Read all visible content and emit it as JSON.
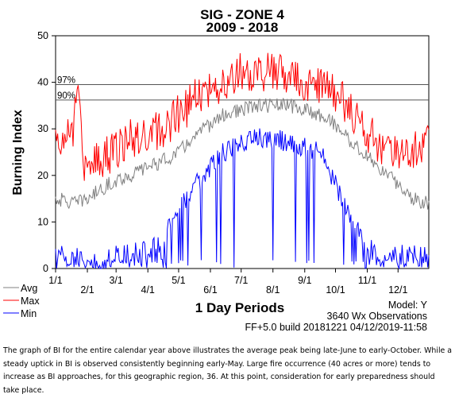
{
  "chart_data": {
    "type": "line",
    "title": "SIG - ZONE 4",
    "subtitle": "2009 - 2018",
    "ylabel": "Burning Index",
    "xlabel": "1 Day Periods",
    "ylim": [
      0,
      50
    ],
    "yticks": [
      "0",
      "10",
      "20",
      "30",
      "40",
      "50"
    ],
    "x_tick_labels": [
      "1/1",
      "2/1",
      "3/1",
      "4/1",
      "5/1",
      "6/1",
      "7/1",
      "8/1",
      "9/1",
      "10/1",
      "11/1",
      "12/1"
    ],
    "x_tick_days": [
      1,
      32,
      60,
      91,
      121,
      152,
      182,
      213,
      244,
      274,
      305,
      335
    ],
    "percentile_lines": [
      {
        "label": "97%",
        "value": 39.5
      },
      {
        "label": "90%",
        "value": 36.2
      }
    ],
    "legend_position": "bottom-left",
    "series": [
      {
        "name": "Avg",
        "color": "#808080",
        "keypoints": [
          [
            1,
            15
          ],
          [
            20,
            14
          ],
          [
            32,
            15
          ],
          [
            45,
            17
          ],
          [
            60,
            19
          ],
          [
            75,
            20
          ],
          [
            91,
            22
          ],
          [
            105,
            23
          ],
          [
            121,
            25
          ],
          [
            135,
            28
          ],
          [
            152,
            31
          ],
          [
            165,
            33
          ],
          [
            182,
            34
          ],
          [
            200,
            35
          ],
          [
            213,
            35
          ],
          [
            230,
            35
          ],
          [
            244,
            34
          ],
          [
            260,
            33
          ],
          [
            274,
            31
          ],
          [
            290,
            27
          ],
          [
            305,
            24
          ],
          [
            320,
            21
          ],
          [
            335,
            18
          ],
          [
            350,
            15
          ],
          [
            365,
            14
          ]
        ]
      },
      {
        "name": "Max",
        "color": "#ff0000",
        "keypoints": [
          [
            1,
            28
          ],
          [
            10,
            27
          ],
          [
            18,
            30
          ],
          [
            20,
            38
          ],
          [
            25,
            34
          ],
          [
            30,
            20
          ],
          [
            32,
            21
          ],
          [
            45,
            24
          ],
          [
            60,
            25
          ],
          [
            75,
            28
          ],
          [
            91,
            29
          ],
          [
            105,
            30
          ],
          [
            121,
            33
          ],
          [
            135,
            36
          ],
          [
            152,
            38
          ],
          [
            165,
            40
          ],
          [
            182,
            43
          ],
          [
            190,
            41
          ],
          [
            200,
            42
          ],
          [
            213,
            42
          ],
          [
            230,
            41
          ],
          [
            244,
            40
          ],
          [
            260,
            39
          ],
          [
            274,
            38
          ],
          [
            290,
            33
          ],
          [
            305,
            29
          ],
          [
            320,
            26
          ],
          [
            335,
            24
          ],
          [
            350,
            26
          ],
          [
            365,
            27
          ]
        ]
      },
      {
        "name": "Min",
        "color": "#0000ff",
        "keypoints": [
          [
            1,
            3
          ],
          [
            30,
            2
          ],
          [
            45,
            1
          ],
          [
            60,
            3
          ],
          [
            91,
            4
          ],
          [
            105,
            6
          ],
          [
            121,
            13
          ],
          [
            135,
            17
          ],
          [
            152,
            22
          ],
          [
            165,
            25
          ],
          [
            182,
            27
          ],
          [
            200,
            28
          ],
          [
            213,
            28
          ],
          [
            230,
            27
          ],
          [
            244,
            26
          ],
          [
            260,
            25
          ],
          [
            274,
            18
          ],
          [
            290,
            10
          ],
          [
            305,
            5
          ],
          [
            320,
            2
          ],
          [
            335,
            3
          ],
          [
            350,
            3
          ],
          [
            365,
            4
          ]
        ]
      }
    ]
  },
  "info": {
    "model": "Model: Y",
    "observations": "3640 Wx Observations",
    "build": "FF+5.0 build 20181221 04/12/2019-11:58"
  },
  "caption": "The graph of BI for the entire calendar year above illustrates the average peak being late-June to early-October. While a steady uptick in BI is observed consistently beginning early-May. Large fire occurrence (40 acres or more) tends to increase as BI approaches, for this geographic region, 36. At this point, consideration for early preparedness should take place."
}
